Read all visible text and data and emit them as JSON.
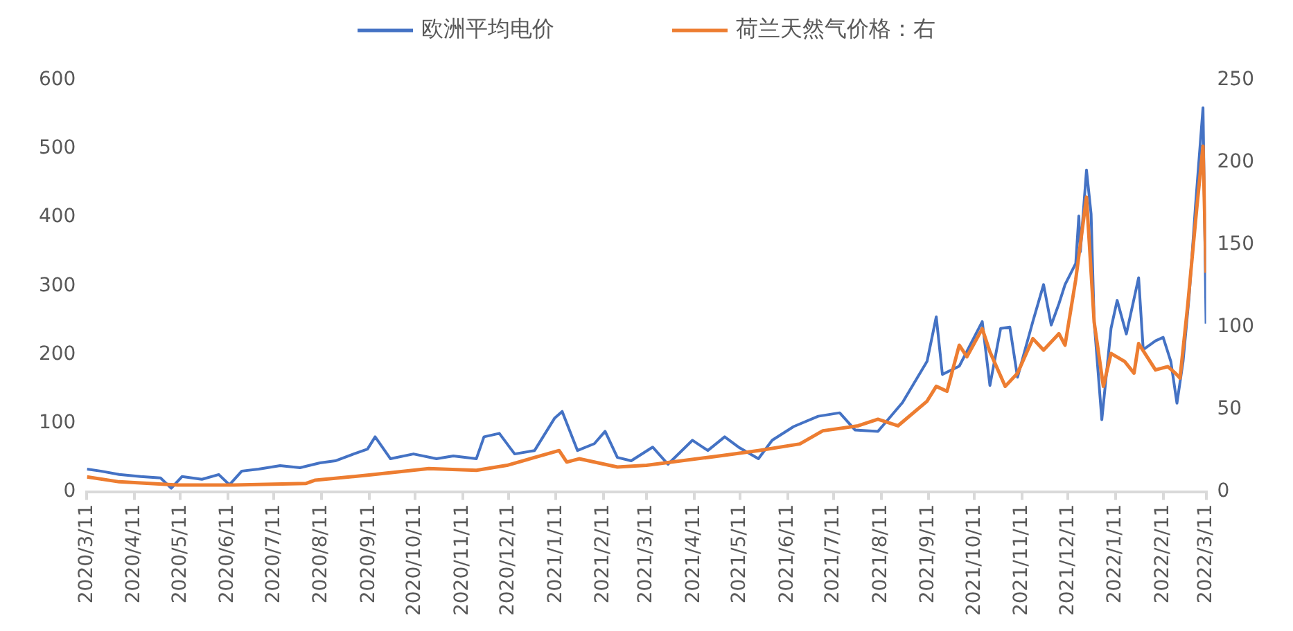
{
  "chart_data": {
    "type": "line",
    "legend": "top",
    "grid": false,
    "marker": "none",
    "line_style": "solid",
    "xlim": [
      "2020-03-11",
      "2022-03-11"
    ],
    "xticks": [
      {
        "value": "2020-03-11",
        "label": "2020/3/11"
      },
      {
        "value": "2020-04-11",
        "label": "2020/4/11"
      },
      {
        "value": "2020-05-11",
        "label": "2020/5/11"
      },
      {
        "value": "2020-06-11",
        "label": "2020/6/11"
      },
      {
        "value": "2020-07-11",
        "label": "2020/7/11"
      },
      {
        "value": "2020-08-11",
        "label": "2020/8/11"
      },
      {
        "value": "2020-09-11",
        "label": "2020/9/11"
      },
      {
        "value": "2020-10-11",
        "label": "2020/10/11"
      },
      {
        "value": "2020-11-11",
        "label": "2020/11/11"
      },
      {
        "value": "2020-12-11",
        "label": "2020/12/11"
      },
      {
        "value": "2021-01-11",
        "label": "2021/1/11"
      },
      {
        "value": "2021-02-11",
        "label": "2021/2/11"
      },
      {
        "value": "2021-03-11",
        "label": "2021/3/11"
      },
      {
        "value": "2021-04-11",
        "label": "2021/4/11"
      },
      {
        "value": "2021-05-11",
        "label": "2021/5/11"
      },
      {
        "value": "2021-06-11",
        "label": "2021/6/11"
      },
      {
        "value": "2021-07-11",
        "label": "2021/7/11"
      },
      {
        "value": "2021-08-11",
        "label": "2021/8/11"
      },
      {
        "value": "2021-09-11",
        "label": "2021/9/11"
      },
      {
        "value": "2021-10-11",
        "label": "2021/10/11"
      },
      {
        "value": "2021-11-11",
        "label": "2021/11/11"
      },
      {
        "value": "2021-12-11",
        "label": "2021/12/11"
      },
      {
        "value": "2022-01-11",
        "label": "2022/1/11"
      },
      {
        "value": "2022-02-11",
        "label": "2022/2/11"
      },
      {
        "value": "2022-03-11",
        "label": "2022/3/11"
      }
    ],
    "ylim": [
      0,
      600
    ],
    "yticks": [
      0,
      100,
      200,
      300,
      400,
      500,
      600
    ],
    "y2lim": [
      0,
      250
    ],
    "y2ticks": [
      0,
      50,
      100,
      150,
      200,
      250
    ],
    "series": [
      {
        "name": "欧洲平均电价",
        "color": "#4472c4",
        "x": [
          "2020-03-11",
          "2020-03-20",
          "2020-04-01",
          "2020-04-15",
          "2020-04-28",
          "2020-05-05",
          "2020-05-12",
          "2020-05-25",
          "2020-06-05",
          "2020-06-12",
          "2020-06-20",
          "2020-07-01",
          "2020-07-15",
          "2020-07-28",
          "2020-08-10",
          "2020-08-20",
          "2020-09-01",
          "2020-09-10",
          "2020-09-15",
          "2020-09-25",
          "2020-10-10",
          "2020-10-25",
          "2020-11-05",
          "2020-11-20",
          "2020-11-25",
          "2020-12-05",
          "2020-12-15",
          "2020-12-28",
          "2021-01-10",
          "2021-01-15",
          "2021-01-25",
          "2021-02-05",
          "2021-02-12",
          "2021-02-20",
          "2021-03-01",
          "2021-03-15",
          "2021-03-25",
          "2021-04-10",
          "2021-04-20",
          "2021-05-01",
          "2021-05-10",
          "2021-05-23",
          "2021-06-01",
          "2021-06-15",
          "2021-07-01",
          "2021-07-15",
          "2021-07-25",
          "2021-08-09",
          "2021-08-25",
          "2021-09-10",
          "2021-09-16",
          "2021-09-20",
          "2021-10-01",
          "2021-10-16",
          "2021-10-21",
          "2021-10-28",
          "2021-11-03",
          "2021-11-08",
          "2021-11-18",
          "2021-11-25",
          "2021-11-30",
          "2021-12-05",
          "2021-12-09",
          "2021-12-16",
          "2021-12-18",
          "2021-12-19",
          "2021-12-23",
          "2021-12-26",
          "2021-12-28",
          "2022-01-02",
          "2022-01-08",
          "2022-01-12",
          "2022-01-18",
          "2022-01-26",
          "2022-01-29",
          "2022-02-06",
          "2022-02-11",
          "2022-02-16",
          "2022-02-20",
          "2022-02-24",
          "2022-02-28",
          "2022-03-04",
          "2022-03-09",
          "2022-03-11"
        ],
        "values": [
          33,
          30,
          25,
          22,
          20,
          5,
          22,
          18,
          25,
          10,
          30,
          33,
          38,
          35,
          42,
          45,
          55,
          62,
          80,
          48,
          55,
          48,
          52,
          48,
          80,
          85,
          55,
          60,
          107,
          117,
          60,
          70,
          88,
          50,
          45,
          65,
          40,
          75,
          60,
          80,
          65,
          48,
          75,
          95,
          110,
          115,
          90,
          88,
          130,
          190,
          255,
          171,
          183,
          248,
          155,
          238,
          240,
          167,
          248,
          302,
          243,
          274,
          302,
          333,
          402,
          350,
          469,
          405,
          248,
          105,
          238,
          279,
          230,
          312,
          207,
          220,
          225,
          190,
          129,
          190,
          286,
          414,
          560,
          245
        ]
      },
      {
        "name": "荷兰天然气价格：右",
        "color": "#ed7d31",
        "axis": "y2",
        "x": [
          "2020-03-11",
          "2020-04-01",
          "2020-05-10",
          "2020-06-15",
          "2020-08-01",
          "2020-08-07",
          "2020-09-10",
          "2020-10-20",
          "2020-11-20",
          "2020-12-10",
          "2021-01-13",
          "2021-01-18",
          "2021-01-26",
          "2021-02-20",
          "2021-03-11",
          "2021-04-30",
          "2021-05-23",
          "2021-06-19",
          "2021-07-04",
          "2021-07-27",
          "2021-08-09",
          "2021-08-22",
          "2021-09-10",
          "2021-09-16",
          "2021-09-23",
          "2021-10-01",
          "2021-10-06",
          "2021-10-16",
          "2021-10-21",
          "2021-10-31",
          "2021-11-08",
          "2021-11-18",
          "2021-11-25",
          "2021-12-05",
          "2021-12-09",
          "2021-12-16",
          "2021-12-23",
          "2021-12-28",
          "2022-01-03",
          "2022-01-08",
          "2022-01-17",
          "2022-01-23",
          "2022-01-26",
          "2022-02-06",
          "2022-02-14",
          "2022-02-19",
          "2022-02-22",
          "2022-02-27",
          "2022-03-05",
          "2022-03-09",
          "2022-03-11"
        ],
        "values": [
          9,
          6,
          4,
          4,
          5,
          7,
          10,
          14,
          13,
          16,
          25,
          18,
          20,
          15,
          16,
          22,
          25,
          29,
          37,
          40,
          44,
          40,
          55,
          64,
          61,
          89,
          82,
          99,
          85,
          64,
          72,
          93,
          86,
          96,
          89,
          129,
          179,
          103,
          64,
          84,
          79,
          72,
          90,
          74,
          76,
          72,
          69,
          113,
          173,
          210,
          133
        ]
      }
    ]
  }
}
